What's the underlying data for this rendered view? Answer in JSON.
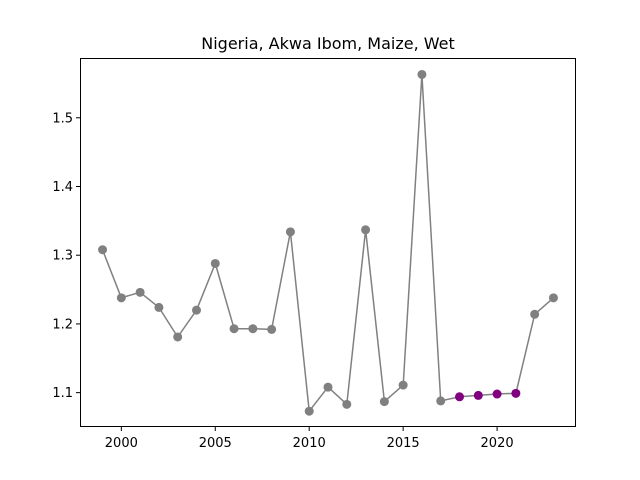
{
  "chart_data": {
    "type": "line",
    "title": "Nigeria, Akwa Ibom, Maize, Wet",
    "xlabel": "",
    "ylabel": "",
    "xlim": [
      1997.8,
      2024.2
    ],
    "ylim": [
      1.05,
      1.587
    ],
    "x_ticks": [
      2000,
      2005,
      2010,
      2015,
      2020
    ],
    "y_ticks": [
      1.1,
      1.2,
      1.3,
      1.4,
      1.5
    ],
    "grid": false,
    "colors": {
      "line": "#808080",
      "marker": "#808080",
      "highlight": "#800080"
    },
    "series": [
      {
        "x": [
          1999,
          2000,
          2001,
          2002,
          2003,
          2004,
          2005,
          2006,
          2007,
          2008,
          2009,
          2010,
          2011,
          2012,
          2013,
          2014,
          2015,
          2016,
          2017,
          2018,
          2019,
          2020,
          2021,
          2022,
          2023
        ],
        "values": [
          1.308,
          1.238,
          1.246,
          1.224,
          1.181,
          1.22,
          1.288,
          1.193,
          1.193,
          1.192,
          1.334,
          1.073,
          1.108,
          1.083,
          1.337,
          1.087,
          1.111,
          1.563,
          1.088,
          1.094,
          1.096,
          1.098,
          1.099,
          1.214,
          1.238
        ]
      }
    ],
    "highlighted_x": [
      2018,
      2019,
      2020,
      2021
    ]
  }
}
